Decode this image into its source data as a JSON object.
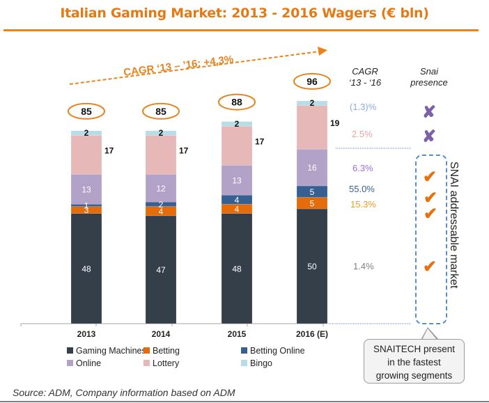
{
  "page": {
    "title": "Italian Gaming Market: 2013 - 2016 Wagers (€ bln)",
    "source": "Source: ADM, Company information based on ADM"
  },
  "chart_data": {
    "type": "bar",
    "stacked": true,
    "title": "Italian Gaming Market: 2013 - 2016 Wagers (€ bln)",
    "xlabel": "",
    "ylabel": "",
    "categories": [
      "2013",
      "2014",
      "2015",
      "2016 (E)"
    ],
    "totals": [
      "85",
      "85",
      "88",
      "96"
    ],
    "series": [
      {
        "name": "Gaming Machines",
        "color": "#343F4A",
        "values": [
          48,
          47,
          48,
          50
        ],
        "label_color": "#FFFFFF"
      },
      {
        "name": "Betting",
        "color": "#E46C0A",
        "values": [
          3,
          4,
          4,
          5
        ],
        "label_color": "#FFFFFF"
      },
      {
        "name": "Betting Online",
        "color": "#376092",
        "values": [
          1,
          2,
          4,
          5
        ],
        "label_color": "#FFFFFF"
      },
      {
        "name": "Online",
        "color": "#B3A2C7",
        "values": [
          13,
          12,
          13,
          16
        ],
        "label_color": "#FFFFFF"
      },
      {
        "name": "Lottery",
        "color": "#E6B9B8",
        "values": [
          17,
          17,
          17,
          19
        ],
        "label_color": "#111111",
        "label_outside": true
      },
      {
        "name": "Bingo",
        "color": "#B7DEE8",
        "values": [
          2,
          2,
          2,
          2
        ],
        "label_color": "#111111"
      }
    ],
    "legend": {
      "position": "bottom",
      "order": [
        "Gaming Machines",
        "Betting",
        "Betting Online",
        "Online",
        "Lottery",
        "Bingo"
      ]
    },
    "grid": false,
    "annotation_trend": "CAGR  ‘13 – ’16: +4,3%"
  },
  "side_table": {
    "cagr_header_line1": "CAGR",
    "cagr_header_line2": "‘13 - ‘16",
    "presence_header_line1": "Snai",
    "presence_header_line2": "presence",
    "rows": [
      {
        "segment": "Bingo",
        "cagr": "(1.3)%",
        "color": "#8FAADC",
        "presence": "✘"
      },
      {
        "segment": "Lottery",
        "cagr": "2.5%",
        "color": "#E6A5A4",
        "presence": "✘"
      },
      {
        "segment": "Online",
        "cagr": "6.3%",
        "color": "#9B6FD8",
        "presence": "✔"
      },
      {
        "segment": "Betting Online",
        "cagr": "55.0%",
        "color": "#376092",
        "presence": "✔"
      },
      {
        "segment": "Betting",
        "cagr": "15.3%",
        "color": "#F39A26",
        "presence": "✔"
      },
      {
        "segment": "Gaming Machines",
        "cagr": "1.4%",
        "color": "#7F7F7F",
        "presence": "✔"
      }
    ],
    "addressable_label": "SNAI addressable market",
    "callout_line1": "SNAITECH present",
    "callout_line2": "in the fastest",
    "callout_line3": "growing segments"
  }
}
